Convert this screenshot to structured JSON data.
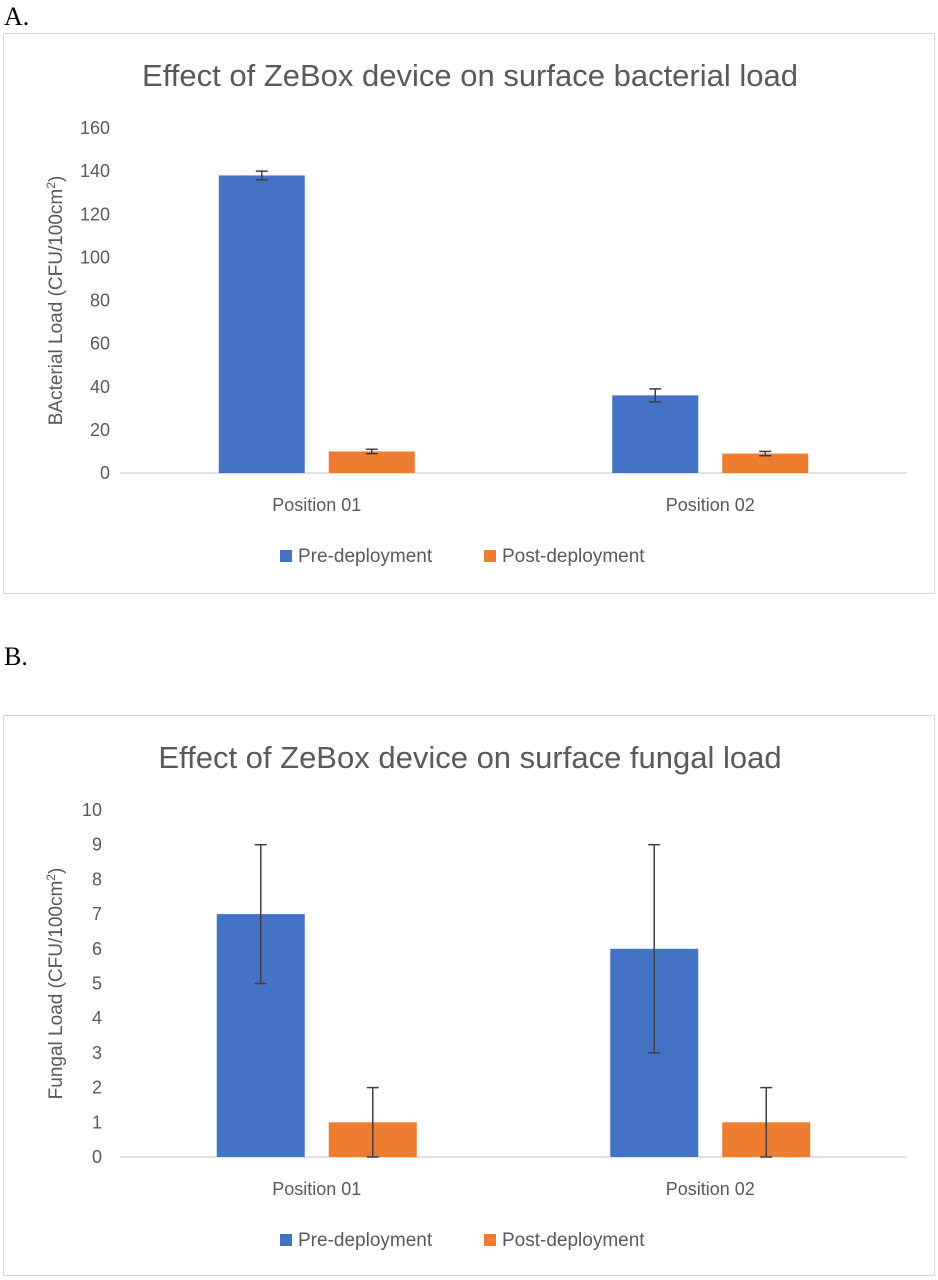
{
  "panels": {
    "a_label": "A.",
    "b_label": "B."
  },
  "colors": {
    "pre": "#4472C4",
    "post": "#ED7D31",
    "axis": "#D9D9D9",
    "error": "#404040",
    "text": "#595959"
  },
  "chart_data": [
    {
      "type": "bar",
      "title": "Effect of ZeBox device on surface bacterial load",
      "ylabel": "BActerial Load (CFU/100cm",
      "ylabel_sup": "2",
      "ylabel_end": ")",
      "categories": [
        "Position 01",
        "Position 02"
      ],
      "ylim": [
        0,
        160
      ],
      "yticks": [
        0,
        20,
        40,
        60,
        80,
        100,
        120,
        140,
        160
      ],
      "grid": false,
      "legend_position": "bottom",
      "series": [
        {
          "name": "Pre-deployment",
          "values": [
            138,
            36
          ],
          "error": [
            2,
            3
          ]
        },
        {
          "name": "Post-deployment",
          "values": [
            10,
            9
          ],
          "error": [
            1,
            1
          ]
        }
      ]
    },
    {
      "type": "bar",
      "title": "Effect of ZeBox device on surface fungal load",
      "ylabel": "Fungal Load (CFU/100cm",
      "ylabel_sup": "2",
      "ylabel_end": ")",
      "categories": [
        "Position 01",
        "Position 02"
      ],
      "ylim": [
        0,
        10
      ],
      "yticks": [
        0,
        1,
        2,
        3,
        4,
        5,
        6,
        7,
        8,
        9,
        10
      ],
      "grid": false,
      "legend_position": "bottom",
      "series": [
        {
          "name": "Pre-deployment",
          "values": [
            7,
            6
          ],
          "error": [
            2,
            3
          ]
        },
        {
          "name": "Post-deployment",
          "values": [
            1,
            1
          ],
          "error": [
            1,
            1
          ]
        }
      ]
    }
  ]
}
